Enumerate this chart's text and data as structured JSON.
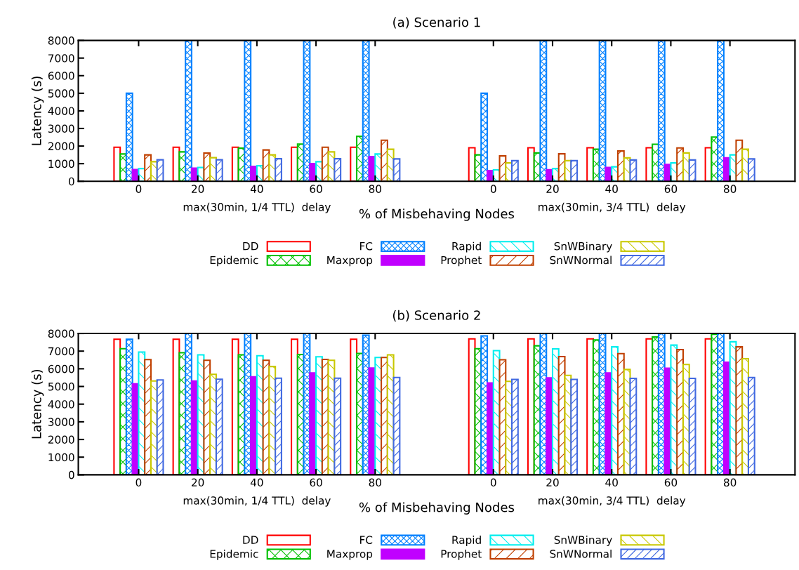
{
  "chart_data": [
    {
      "type": "bar",
      "title": "(a) Scenario 1",
      "xlabel": "% of Misbehaving Nodes",
      "ylabel": "Latency (s)",
      "annotations": [
        "max(30min, 1/4 TTL)  delay",
        "max(30min, 3/4 TTL)  delay"
      ],
      "legend": "bottom",
      "ylim": [
        0,
        8000
      ],
      "yticks": [
        0,
        1000,
        2000,
        3000,
        4000,
        5000,
        6000,
        7000,
        8000
      ],
      "categories": [
        "0",
        "20",
        "40",
        "60",
        "80",
        null,
        "0",
        "20",
        "40",
        "60",
        "80"
      ],
      "series": [
        {
          "name": "DD",
          "color": "#ff0000",
          "values": [
            1930,
            1930,
            1930,
            1930,
            1930,
            null,
            1900,
            1900,
            1900,
            1900,
            1900
          ]
        },
        {
          "name": "Epidemic",
          "color": "#00c000",
          "values": [
            1550,
            1670,
            1880,
            2110,
            2550,
            null,
            1500,
            1610,
            1820,
            2100,
            2510
          ]
        },
        {
          "name": "FC",
          "color": "#0080ff",
          "values": [
            5000,
            8000,
            8000,
            8000,
            8000,
            null,
            5000,
            8000,
            8000,
            8000,
            8000
          ]
        },
        {
          "name": "Maxprop",
          "color": "#c000ff",
          "values": [
            670,
            740,
            840,
            1000,
            1400,
            null,
            610,
            660,
            780,
            950,
            1330
          ]
        },
        {
          "name": "Rapid",
          "color": "#00eeee",
          "values": [
            720,
            780,
            880,
            1110,
            1550,
            null,
            650,
            720,
            820,
            1040,
            1500
          ]
        },
        {
          "name": "Prophet",
          "color": "#c04000",
          "values": [
            1500,
            1600,
            1780,
            1930,
            2330,
            null,
            1440,
            1560,
            1720,
            1890,
            2330
          ]
        },
        {
          "name": "SnWBinary",
          "color": "#c8c800",
          "values": [
            1110,
            1340,
            1500,
            1670,
            1820,
            null,
            1040,
            1170,
            1330,
            1610,
            1820
          ]
        },
        {
          "name": "SnWNormal",
          "color": "#4169e1",
          "values": [
            1220,
            1220,
            1280,
            1280,
            1270,
            null,
            1170,
            1170,
            1210,
            1210,
            1270
          ]
        }
      ]
    },
    {
      "type": "bar",
      "title": "(b) Scenario 2",
      "xlabel": "% of Misbehaving Nodes",
      "ylabel": "Latency (s)",
      "annotations": [
        "max(30min, 1/4 TTL)  delay",
        "max(30min, 3/4 TTL)  delay"
      ],
      "legend": "bottom",
      "ylim": [
        0,
        8000
      ],
      "yticks": [
        0,
        1000,
        2000,
        3000,
        4000,
        5000,
        6000,
        7000,
        8000
      ],
      "categories": [
        "0",
        "20",
        "40",
        "60",
        "80",
        null,
        "0",
        "20",
        "40",
        "60",
        "80"
      ],
      "series": [
        {
          "name": "DD",
          "color": "#ff0000",
          "values": [
            7670,
            7670,
            7670,
            7670,
            7670,
            null,
            7690,
            7690,
            7690,
            7690,
            7690
          ]
        },
        {
          "name": "Epidemic",
          "color": "#00c000",
          "values": [
            7140,
            6910,
            6790,
            6810,
            6870,
            null,
            7140,
            7300,
            7630,
            7800,
            7950
          ]
        },
        {
          "name": "FC",
          "color": "#0080ff",
          "values": [
            7670,
            8000,
            8000,
            8000,
            7900,
            null,
            7860,
            8000,
            8000,
            8000,
            8000
          ]
        },
        {
          "name": "Maxprop",
          "color": "#c000ff",
          "values": [
            5150,
            5310,
            5550,
            5760,
            6040,
            null,
            5200,
            5490,
            5760,
            6030,
            6370
          ]
        },
        {
          "name": "Rapid",
          "color": "#00eeee",
          "values": [
            6950,
            6790,
            6740,
            6680,
            6640,
            null,
            7030,
            7130,
            7240,
            7340,
            7530
          ]
        },
        {
          "name": "Prophet",
          "color": "#c04000",
          "values": [
            6520,
            6480,
            6480,
            6530,
            6640,
            null,
            6510,
            6690,
            6860,
            7090,
            7240
          ]
        },
        {
          "name": "SnWBinary",
          "color": "#c8c800",
          "values": [
            5310,
            5690,
            6130,
            6480,
            6790,
            null,
            5290,
            5630,
            5960,
            6240,
            6570
          ]
        },
        {
          "name": "SnWNormal",
          "color": "#4169e1",
          "values": [
            5370,
            5410,
            5470,
            5470,
            5510,
            null,
            5400,
            5400,
            5460,
            5460,
            5510
          ]
        }
      ]
    }
  ]
}
